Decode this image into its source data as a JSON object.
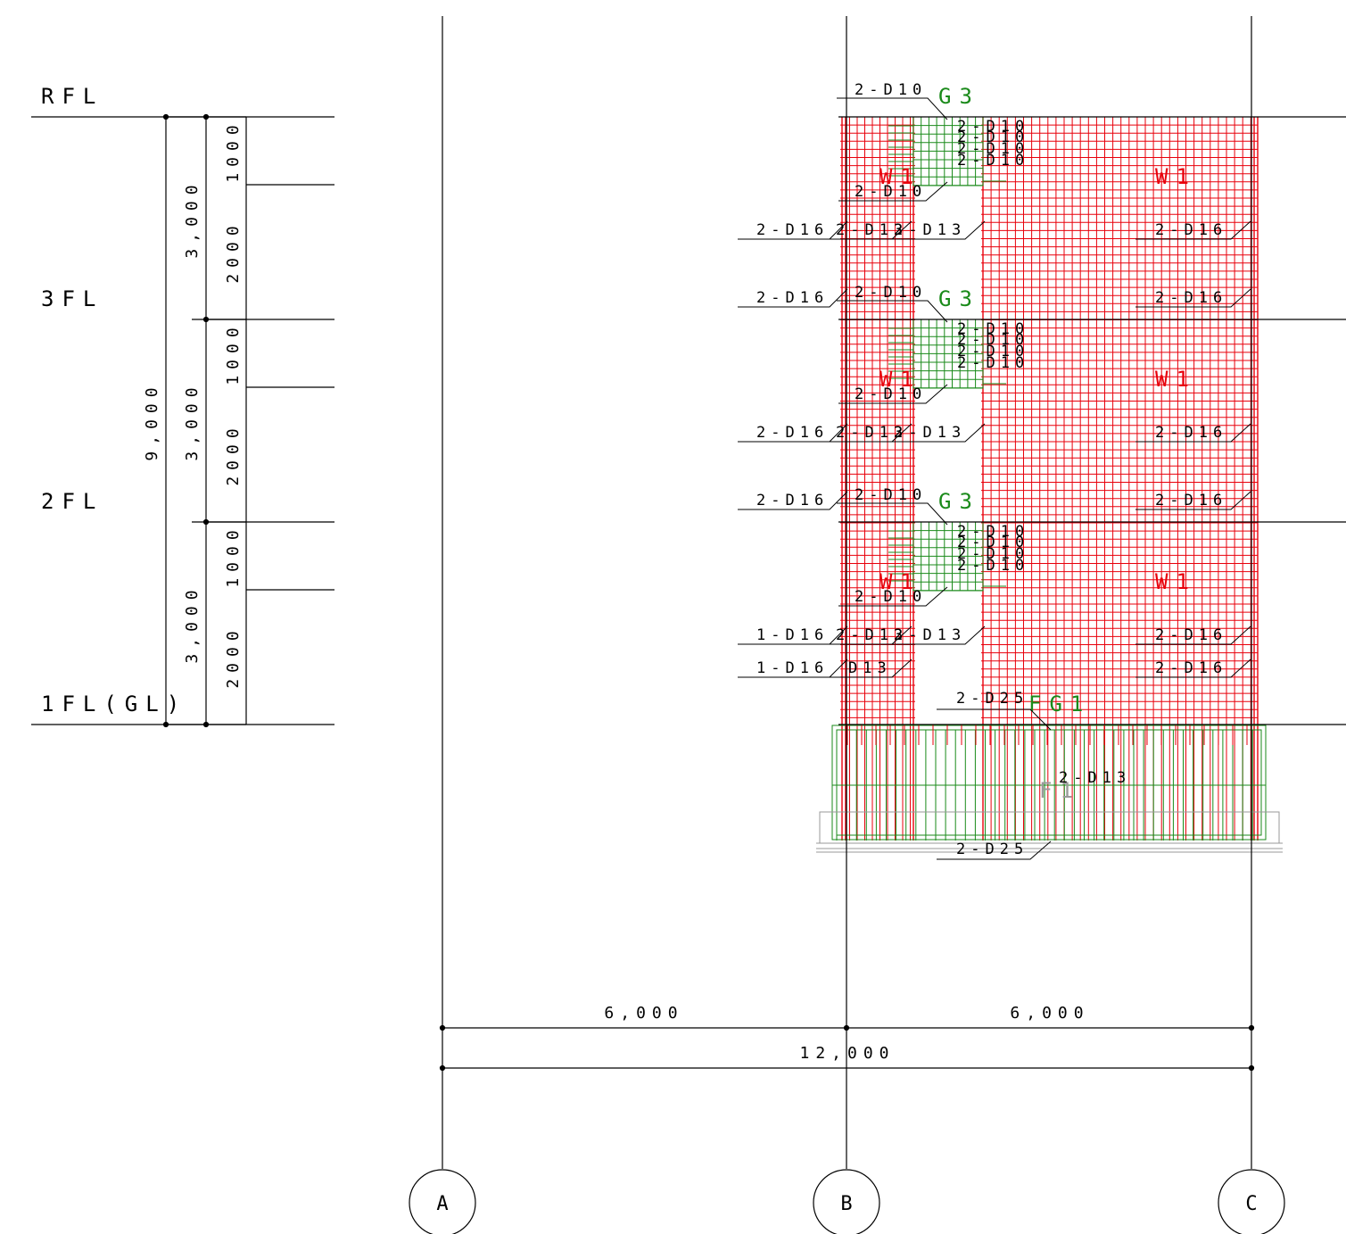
{
  "levels": {
    "rfl": "RFL",
    "f3": "3FL",
    "f2": "2FL",
    "f1": "1FL(GL)"
  },
  "dimensions": {
    "total_height": "9,000",
    "story_heights": [
      "3,000",
      "3,000",
      "3,000"
    ],
    "sub_heights": [
      "1000",
      "2000",
      "1000",
      "2000",
      "1000",
      "2000"
    ],
    "span_left": "6,000",
    "span_right": "6,000",
    "span_total": "12,000"
  },
  "axes": [
    "A",
    "B",
    "C"
  ],
  "members": {
    "beam": "G3",
    "wall": "W1",
    "foundation_beam": "FG1",
    "footing": "F1"
  },
  "rebar_labels": {
    "d10_2": "2-D10",
    "d16_2": "2-D16",
    "d13_2": "2-D13",
    "d16_1": "1-D16",
    "d13": "D13",
    "d25_2": "2-D25",
    "d10_stack": [
      "2-D10",
      "2-D10",
      "2-D10",
      "2-D10"
    ]
  },
  "colors": {
    "wall_rebar": "#e8000b",
    "beam_rebar": "#1a8a1a",
    "linework": "#000000"
  }
}
